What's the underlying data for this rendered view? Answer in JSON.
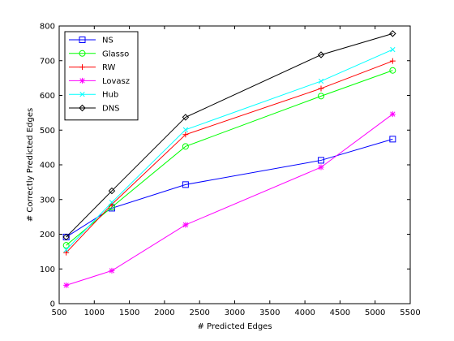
{
  "chart_data": {
    "type": "line",
    "title": "",
    "xlabel": "# Predicted Edges",
    "ylabel": "# Correctly Predicted Edges",
    "xlim": [
      500,
      5500
    ],
    "ylim": [
      0,
      800
    ],
    "xticks": [
      500,
      1000,
      1500,
      2000,
      2500,
      3000,
      3500,
      4000,
      4500,
      5000,
      5500
    ],
    "yticks": [
      0,
      100,
      200,
      300,
      400,
      500,
      600,
      700,
      800
    ],
    "grid": false,
    "legend_position": "top-left",
    "series": [
      {
        "name": "NS",
        "color": "#0000ff",
        "marker": "square",
        "x": [
          600,
          1250,
          2300,
          4230,
          5250
        ],
        "values": [
          192,
          275,
          343,
          413,
          474
        ]
      },
      {
        "name": "Glasso",
        "color": "#00ff00",
        "marker": "circle",
        "x": [
          600,
          1250,
          2300,
          4230,
          5250
        ],
        "values": [
          168,
          278,
          453,
          598,
          672
        ]
      },
      {
        "name": "RW",
        "color": "#ff0000",
        "marker": "plus",
        "x": [
          600,
          1250,
          2300,
          4230,
          5250
        ],
        "values": [
          147,
          286,
          487,
          620,
          699
        ]
      },
      {
        "name": "Lovasz",
        "color": "#ff00ff",
        "marker": "star",
        "x": [
          600,
          1250,
          2300,
          4230,
          5250
        ],
        "values": [
          53,
          95,
          227,
          393,
          546
        ]
      },
      {
        "name": "Hub",
        "color": "#00ffff",
        "marker": "x",
        "x": [
          600,
          1250,
          2300,
          4230,
          5250
        ],
        "values": [
          155,
          292,
          501,
          641,
          732
        ]
      },
      {
        "name": "DNS",
        "color": "#000000",
        "marker": "diamond",
        "x": [
          600,
          1250,
          2300,
          4230,
          5250
        ],
        "values": [
          192,
          325,
          537,
          717,
          778
        ]
      }
    ]
  }
}
